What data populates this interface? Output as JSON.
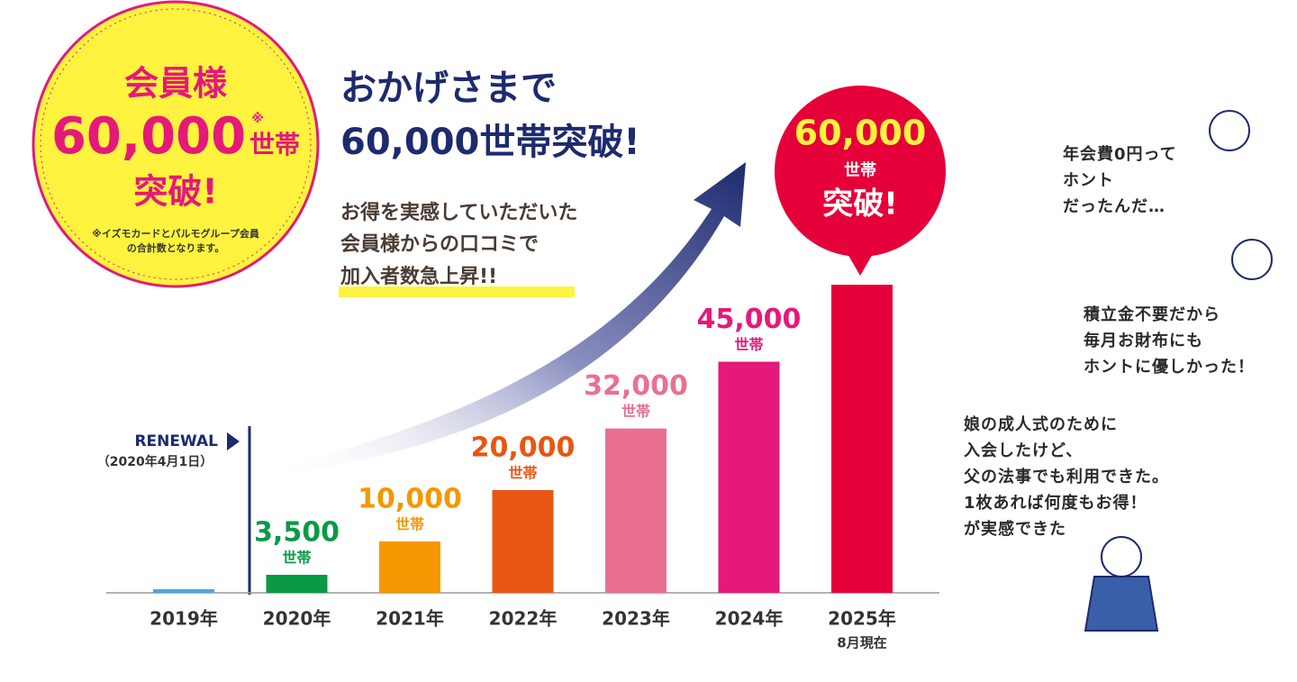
{
  "badge": {
    "line1": "会員様",
    "number": "60,000",
    "mark": "※",
    "unit": "世帯",
    "line3": "突破!",
    "note": [
      "※イズモカードとパルモグループ会員",
      "の合計数となります。"
    ]
  },
  "headline": [
    "おかげさまで",
    "60,000世帯突破!"
  ],
  "body": [
    "お得を実感していただいた",
    "会員様からの口コミで",
    "加入者数急上昇!!"
  ],
  "renewal": {
    "label": "RENEWAL",
    "date": "（2020年4月1日）"
  },
  "chart_data": {
    "type": "bar",
    "categories": [
      "2019年",
      "2020年",
      "2021年",
      "2022年",
      "2023年",
      "2024年",
      "2025年"
    ],
    "category_note": "8月現在",
    "values": [
      700,
      3500,
      10000,
      20000,
      32000,
      45000,
      60000
    ],
    "value_labels": [
      null,
      "3,500",
      "10,000",
      "20,000",
      "32,000",
      "45,000",
      "60,000"
    ],
    "unit": "世帯",
    "callout": "突破!",
    "colors": [
      "#4aa8d8",
      "#0a9a45",
      "#f39800",
      "#e95513",
      "#ea7090",
      "#e4197a",
      "#e60039"
    ],
    "ylim": [
      0,
      60000
    ]
  },
  "testimonials": [
    [
      "年会費0円って",
      "ホント",
      "だったんだ…"
    ],
    [
      "積立金不要だから",
      "毎月お財布にも",
      "ホントに優しかった！"
    ],
    [
      "娘の成人式のために",
      "入会したけど、",
      "父の法事でも利用できた。",
      "1枚あれば何度もお得！",
      "が実感できた"
    ]
  ]
}
